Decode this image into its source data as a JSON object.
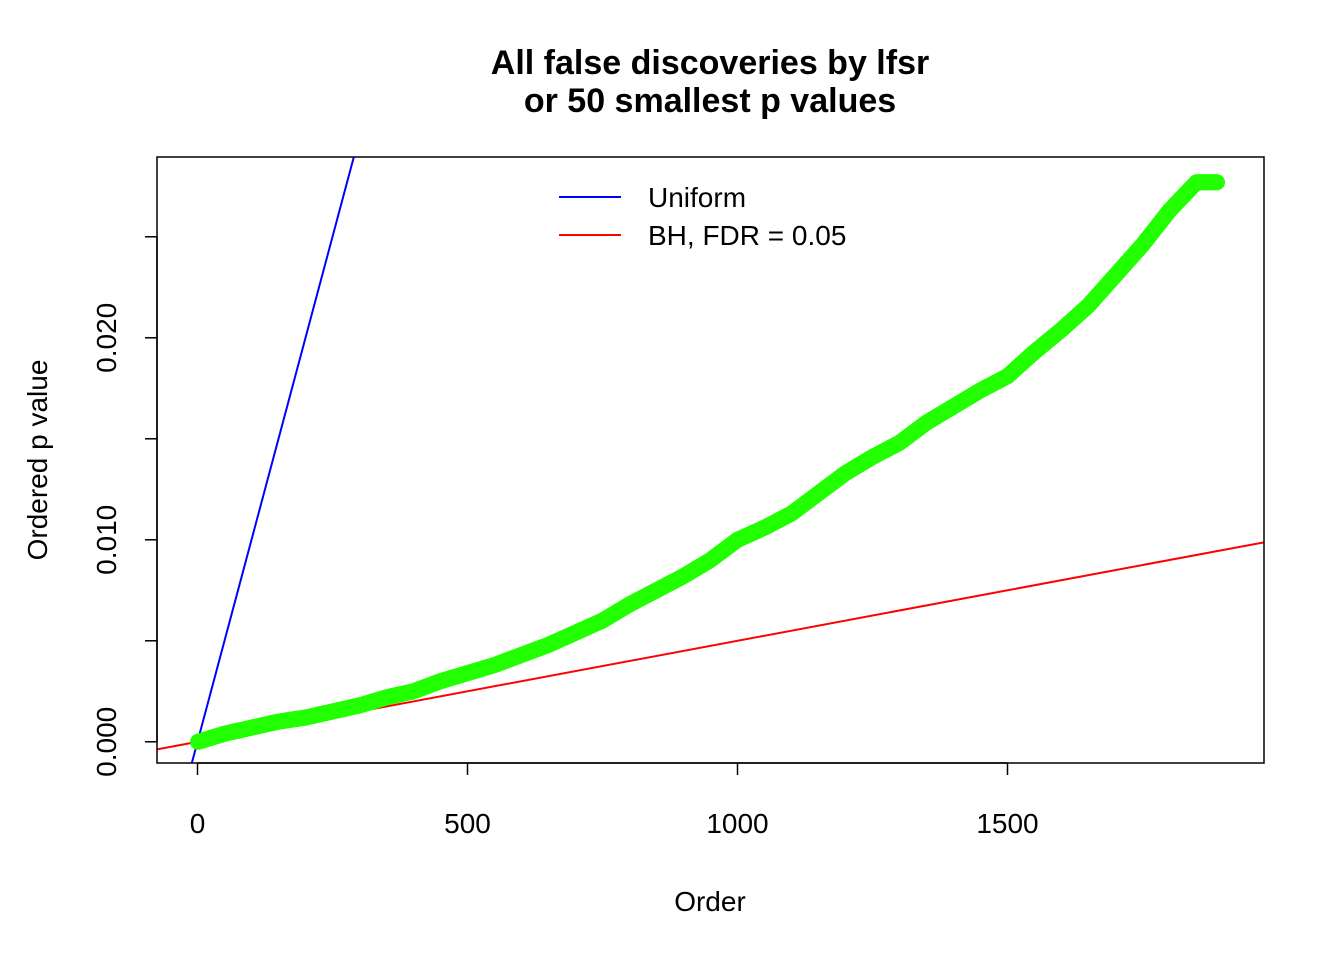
{
  "chart_data": {
    "type": "scatter",
    "title_lines": [
      "All false discoveries by lfsr",
      "or 50 smallest p values"
    ],
    "xlabel": "Order",
    "ylabel": "Ordered p value",
    "xlim": [
      -75,
      1975
    ],
    "ylim": [
      -0.00105,
      0.02895
    ],
    "x_ticks": [
      0,
      500,
      1000,
      1500
    ],
    "x_tick_labels": [
      "0",
      "500",
      "1000",
      "1500"
    ],
    "y_ticks": [
      0.0,
      0.005,
      0.01,
      0.015,
      0.02,
      0.025
    ],
    "y_tick_labels": [
      "0.000",
      "",
      "0.010",
      "",
      "0.020",
      ""
    ],
    "grid": false,
    "legend_position": "top-center",
    "points_color": "#22ff00",
    "series": [
      {
        "name": "ordered p values",
        "x": [
          1,
          50,
          100,
          150,
          200,
          250,
          300,
          350,
          400,
          450,
          500,
          550,
          600,
          650,
          700,
          750,
          800,
          850,
          900,
          950,
          1000,
          1050,
          1100,
          1150,
          1200,
          1250,
          1300,
          1350,
          1400,
          1450,
          1500,
          1550,
          1600,
          1650,
          1700,
          1750,
          1800,
          1850,
          1888
        ],
        "y": [
          0.0,
          0.0004,
          0.0007,
          0.001,
          0.0012,
          0.0015,
          0.0018,
          0.0022,
          0.0025,
          0.003,
          0.0034,
          0.0038,
          0.0043,
          0.0048,
          0.0054,
          0.006,
          0.0068,
          0.0075,
          0.0082,
          0.009,
          0.01,
          0.0106,
          0.0113,
          0.0123,
          0.0133,
          0.0141,
          0.0148,
          0.0158,
          0.0166,
          0.0174,
          0.0181,
          0.0193,
          0.0204,
          0.0216,
          0.0231,
          0.0246,
          0.0263,
          0.0277,
          0.0277
        ]
      }
    ],
    "lines": [
      {
        "name": "Uniform",
        "slope": 0.0001,
        "intercept": 0,
        "color": "#0000ff"
      },
      {
        "name": "BH, FDR = 0.05",
        "slope": 5e-06,
        "intercept": 0,
        "color": "#ff0000"
      }
    ],
    "legend": [
      {
        "label": "Uniform",
        "color": "#0000ff"
      },
      {
        "label": "BH, FDR = 0.05",
        "color": "#ff0000"
      }
    ]
  }
}
